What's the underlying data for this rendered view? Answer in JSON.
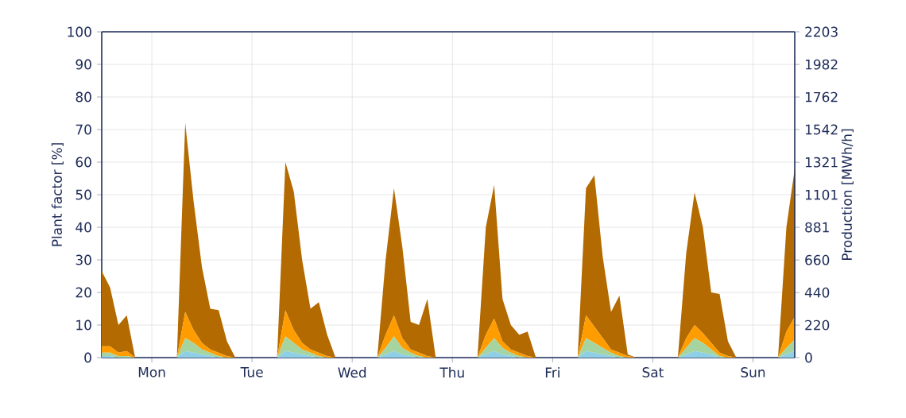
{
  "chart_data": {
    "type": "area",
    "stacked": true,
    "ylabel": "Plant factor [%]",
    "y2label": "Production [MWh/h]",
    "categories": [
      null,
      null,
      null,
      null,
      null,
      null,
      "Mon",
      null,
      null,
      null,
      null,
      null,
      null,
      null,
      null,
      null,
      null,
      null,
      "Tue",
      null,
      null,
      null,
      null,
      null,
      null,
      null,
      null,
      null,
      null,
      null,
      "Wed",
      null,
      null,
      null,
      null,
      null,
      null,
      null,
      null,
      null,
      null,
      null,
      "Thu",
      null,
      null,
      null,
      null,
      null,
      null,
      null,
      null,
      null,
      null,
      null,
      "Fri",
      null,
      null,
      null,
      null,
      null,
      null,
      null,
      null,
      null,
      null,
      null,
      "Sat",
      null,
      null,
      null,
      null,
      null,
      null,
      null,
      null,
      null,
      null,
      null,
      "Sun",
      null,
      null,
      null,
      null,
      null
    ],
    "series": [
      {
        "color": "#8ecfe6",
        "values": [
          0.5,
          0.5,
          0,
          0,
          0,
          0,
          0,
          0,
          0,
          0,
          2,
          1.5,
          1,
          0.5,
          0,
          0,
          0,
          0,
          0,
          0,
          0,
          0,
          2,
          1.5,
          1,
          0.5,
          0,
          0,
          0,
          0,
          0,
          0,
          0,
          0,
          1,
          2,
          1,
          0.5,
          0,
          0,
          0,
          0,
          0,
          0,
          0,
          0,
          1,
          2,
          1,
          0.5,
          0,
          0,
          0,
          0,
          0,
          0,
          0,
          0,
          2,
          1.5,
          1,
          0.5,
          0,
          0,
          0,
          0,
          0,
          0,
          0,
          0,
          1,
          2,
          1.5,
          1,
          0,
          0,
          0,
          0,
          0,
          0,
          0,
          0,
          1,
          2
        ]
      },
      {
        "color": "#a6d4a0",
        "values": [
          1,
          1,
          0.5,
          0.5,
          0,
          0,
          0,
          0,
          0,
          0,
          4,
          3,
          1.5,
          1,
          0.5,
          0,
          0,
          0,
          0,
          0,
          0,
          0,
          4.5,
          3,
          1.5,
          1,
          0.5,
          0,
          0,
          0,
          0,
          0,
          0,
          0,
          2,
          4.5,
          2,
          1,
          0.5,
          0,
          0,
          0,
          0,
          0,
          0,
          0,
          2,
          4,
          2,
          1,
          0.5,
          0,
          0,
          0,
          0,
          0,
          0,
          0,
          4,
          3,
          2,
          1,
          0.5,
          0,
          0,
          0,
          0,
          0,
          0,
          0,
          2,
          4,
          3,
          1.5,
          0.5,
          0,
          0,
          0,
          0,
          0,
          0,
          0,
          2,
          3.5
        ]
      },
      {
        "color": "#ff9d00",
        "values": [
          2,
          2,
          1,
          1.5,
          0,
          0,
          0,
          0,
          0,
          0,
          8,
          4,
          2,
          1,
          1,
          0.5,
          0,
          0,
          0,
          0,
          0,
          0,
          8,
          4,
          2,
          1,
          1,
          0.5,
          0,
          0,
          0,
          0,
          0,
          0,
          4,
          6.5,
          3,
          1,
          1,
          0.5,
          0,
          0,
          0,
          0,
          0,
          0,
          4,
          6,
          2,
          1,
          1,
          0.5,
          0,
          0,
          0,
          0,
          0,
          0,
          7,
          5,
          3,
          1,
          1,
          0.5,
          0,
          0,
          0,
          0,
          0,
          0,
          3,
          4,
          3,
          2,
          1,
          0.5,
          0,
          0,
          0,
          0,
          0,
          0,
          5,
          7
        ]
      },
      {
        "color": "#b36a00",
        "values": [
          23,
          18,
          8.5,
          11,
          0,
          0,
          0,
          0,
          0,
          0,
          58,
          39.5,
          23.3,
          12.5,
          13.1,
          4.5,
          0,
          0,
          0,
          0,
          0,
          0,
          45.5,
          42.5,
          25.5,
          12.5,
          15.5,
          6.5,
          0,
          0,
          0,
          0,
          0,
          0,
          23,
          39,
          28,
          8.5,
          8.5,
          17.5,
          0,
          0,
          0,
          0,
          0,
          0,
          33,
          41,
          13,
          7.5,
          5.5,
          7.5,
          0,
          0,
          0,
          0,
          0,
          0,
          39,
          46.5,
          25,
          11.5,
          17.5,
          0.5,
          0,
          0,
          0,
          0,
          0,
          0,
          26,
          40.7,
          32.5,
          15.5,
          18,
          4.5,
          0,
          0,
          0,
          0,
          0,
          0,
          32,
          45.5
        ]
      }
    ],
    "ylim": [
      0,
      100
    ],
    "yticks": [
      0,
      10,
      20,
      30,
      40,
      50,
      60,
      70,
      80,
      90,
      100
    ],
    "y2lim": [
      0,
      2203
    ],
    "y2ticks": [
      0,
      220,
      440,
      660,
      881,
      1101,
      1321,
      1542,
      1762,
      1982,
      2203
    ],
    "grid": true
  }
}
